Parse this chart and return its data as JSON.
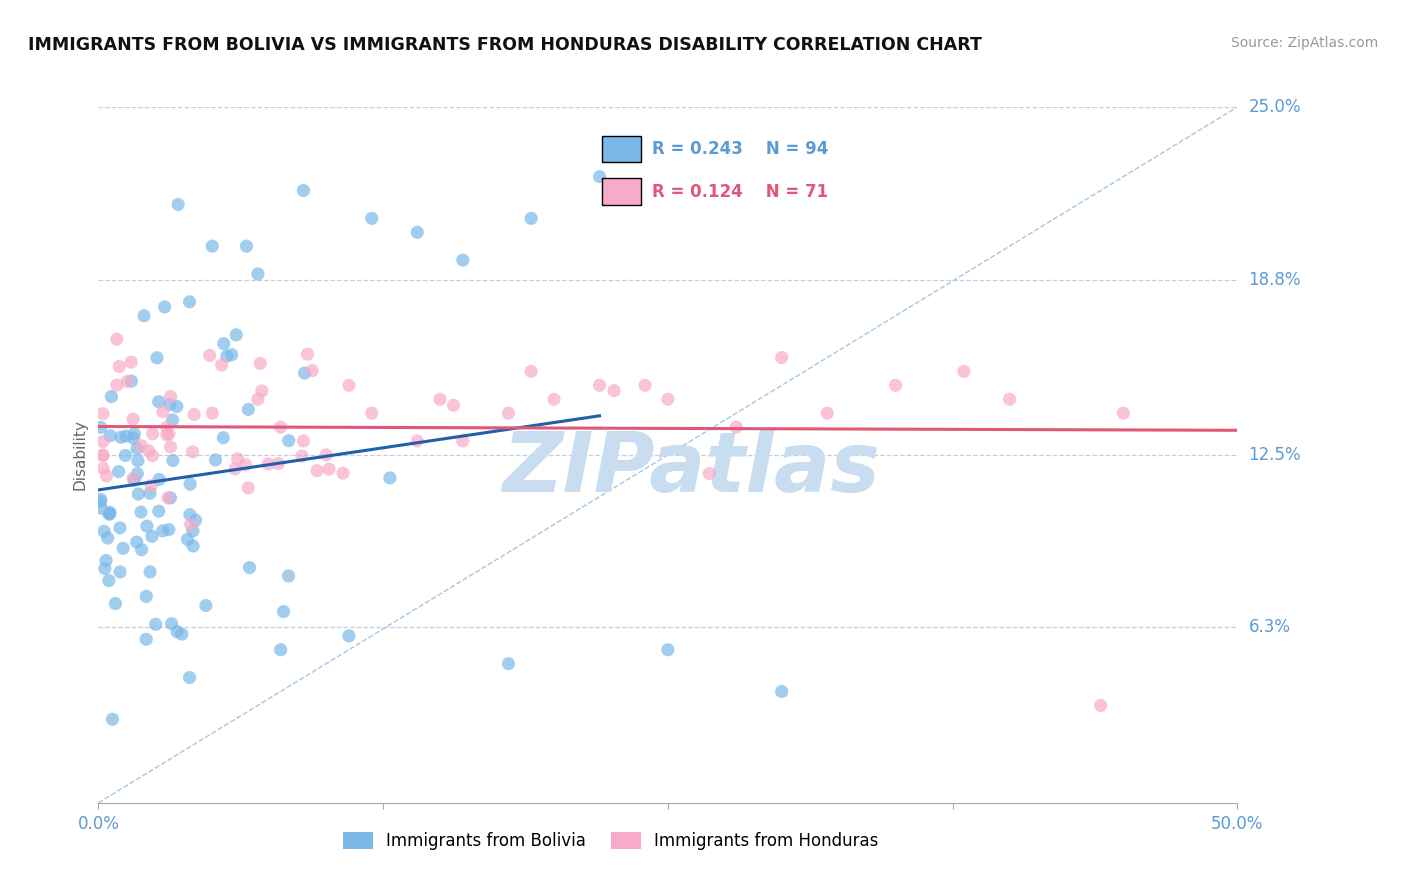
{
  "title": "IMMIGRANTS FROM BOLIVIA VS IMMIGRANTS FROM HONDURAS DISABILITY CORRELATION CHART",
  "source": "Source: ZipAtlas.com",
  "ylabel": "Disability",
  "xlim": [
    0.0,
    50.0
  ],
  "ylim": [
    0.0,
    25.0
  ],
  "ytick_labels": [
    "6.3%",
    "12.5%",
    "18.8%",
    "25.0%"
  ],
  "ytick_values": [
    6.3,
    12.5,
    18.8,
    25.0
  ],
  "bolivia_color": "#7ab8e8",
  "honduras_color": "#f8aac8",
  "bolivia_trend_color": "#2060a8",
  "honduras_trend_color": "#e05878",
  "bolivia_R": 0.243,
  "bolivia_N": 94,
  "honduras_R": 0.124,
  "honduras_N": 71,
  "background_color": "#ffffff",
  "grid_color": "#c0cfe0",
  "ref_line_color": "#90b8d8",
  "watermark_color": "#c8ddf0",
  "bolivia_label": "Immigrants from Bolivia",
  "honduras_label": "Immigrants from Honduras",
  "legend_border_color": "#cccccc",
  "axis_label_color": "#5b9bd5",
  "ylabel_color": "#666666",
  "title_color": "#111111",
  "source_color": "#999999"
}
